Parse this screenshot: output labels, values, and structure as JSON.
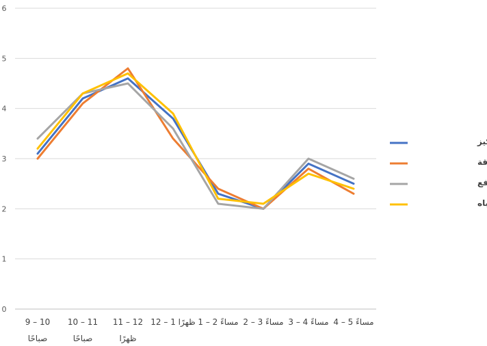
{
  "chart_data": {
    "type": "line",
    "categories": [
      [
        "9 – 10",
        "صباحًا"
      ],
      [
        "10 – 11",
        "صباحًا"
      ],
      [
        "11 – 12",
        "ظهرًا"
      ],
      [
        "12 – 1 ظهرًا"
      ],
      [
        "1 – 2 مساءً"
      ],
      [
        "2 – 3 مساءً"
      ],
      [
        "3 – 4 مساءً"
      ],
      [
        "4 – 5 مساءً"
      ]
    ],
    "ylim": [
      0,
      6
    ],
    "yticks": [
      0,
      1,
      2,
      3,
      4,
      5,
      6
    ],
    "grid": true,
    "legend_position": "right",
    "series": [
      {
        "name": "متوسط التركيز",
        "color": "#4472C4",
        "values": [
          3.1,
          4.2,
          4.6,
          3.8,
          2.3,
          2.0,
          2.9,
          2.5
        ]
      },
      {
        "name": "متوسط الطاقة",
        "color": "#ED7D31",
        "values": [
          3.0,
          4.1,
          4.8,
          3.4,
          2.4,
          2.0,
          2.8,
          2.3
        ]
      },
      {
        "name": "متوسط الدافع",
        "color": "#A5A5A5",
        "values": [
          3.4,
          4.3,
          4.5,
          3.6,
          2.1,
          2.0,
          3.0,
          2.6
        ]
      },
      {
        "name": "متوسط مدى الانتباه",
        "color": "#FFC000",
        "values": [
          3.2,
          4.3,
          4.7,
          3.9,
          2.2,
          2.1,
          2.7,
          2.4
        ]
      }
    ]
  }
}
